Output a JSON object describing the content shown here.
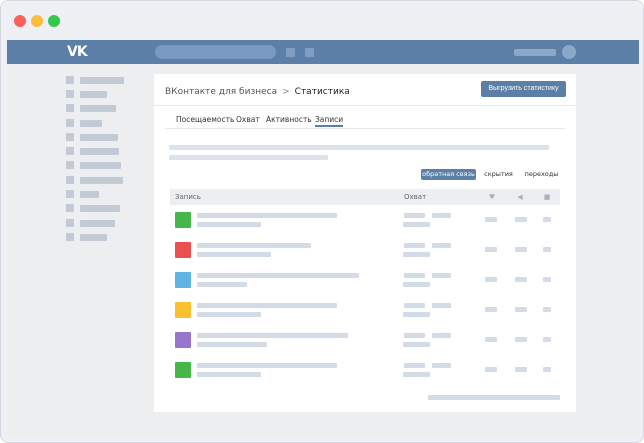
{
  "window": {
    "buttons": [
      "close",
      "minimize",
      "maximize"
    ],
    "colors": {
      "close": "#fc605b",
      "minimize": "#fdbc40",
      "maximize": "#34c84a"
    }
  },
  "vk_header": {
    "logo": "VK",
    "brand_color": "#5b7fa6"
  },
  "breadcrumb": {
    "parent": "ВКонтакте для бизнеса",
    "separator": ">",
    "current": "Статистика"
  },
  "export_button": "Выгрузить статистику",
  "tabs": [
    "Посещаемость",
    "Охват",
    "Активность",
    "Записи"
  ],
  "active_tab": "Записи",
  "filters": [
    "обратная связь",
    "скрытия",
    "переходы"
  ],
  "active_filter": "обратная связь",
  "table": {
    "columns": {
      "post": "Запись",
      "reach": "Охват"
    },
    "icon_columns": [
      "heart-icon",
      "megaphone-icon",
      "comment-icon"
    ],
    "row_colors": [
      "#45b649",
      "#e9504f",
      "#5fb3e0",
      "#fbc02d",
      "#9575cd",
      "#45b649"
    ]
  }
}
